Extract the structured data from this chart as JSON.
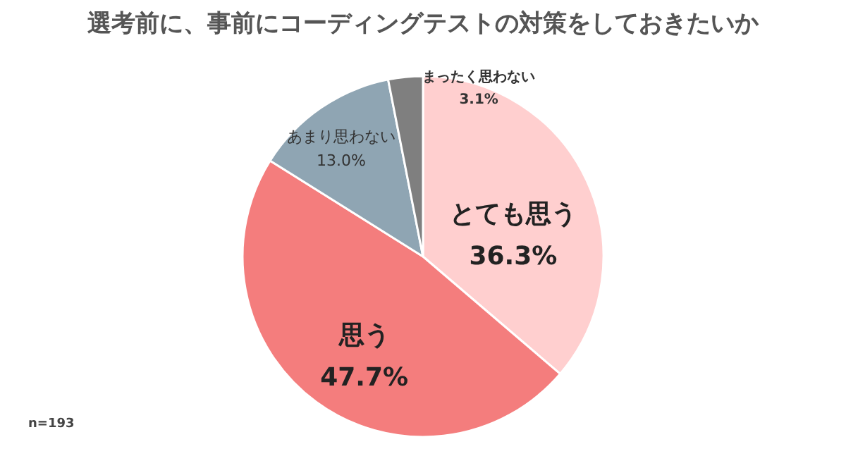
{
  "chart_data": {
    "type": "pie",
    "title": "選考前に、事前にコーディングテストの対策をしておきたいか",
    "categories": [
      "とても思う",
      "思う",
      "あまり思わない",
      "まったく思わない"
    ],
    "values": [
      36.3,
      47.7,
      13.0,
      3.1
    ],
    "value_labels": [
      "36.3%",
      "47.7%",
      "13.0%",
      "3.1%"
    ],
    "colors": [
      "#ffcfcf",
      "#f47d7d",
      "#8fa5b3",
      "#7f7f7f"
    ],
    "annotations": [
      "n=193"
    ],
    "legend": false
  }
}
